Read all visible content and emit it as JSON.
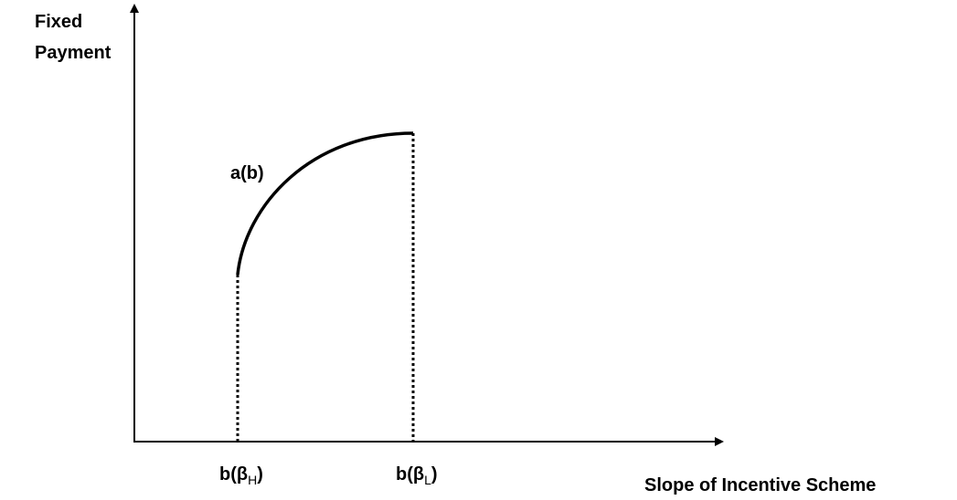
{
  "y_axis_label": [
    "Fixed",
    "Payment"
  ],
  "x_axis_label": "Slope of Incentive Scheme",
  "curve_label": "a(b)",
  "x_markers": [
    {
      "text": "b(β",
      "subscript": "H",
      "close": ")"
    },
    {
      "text": "b(β",
      "subscript": "L",
      "close": ")"
    }
  ]
}
